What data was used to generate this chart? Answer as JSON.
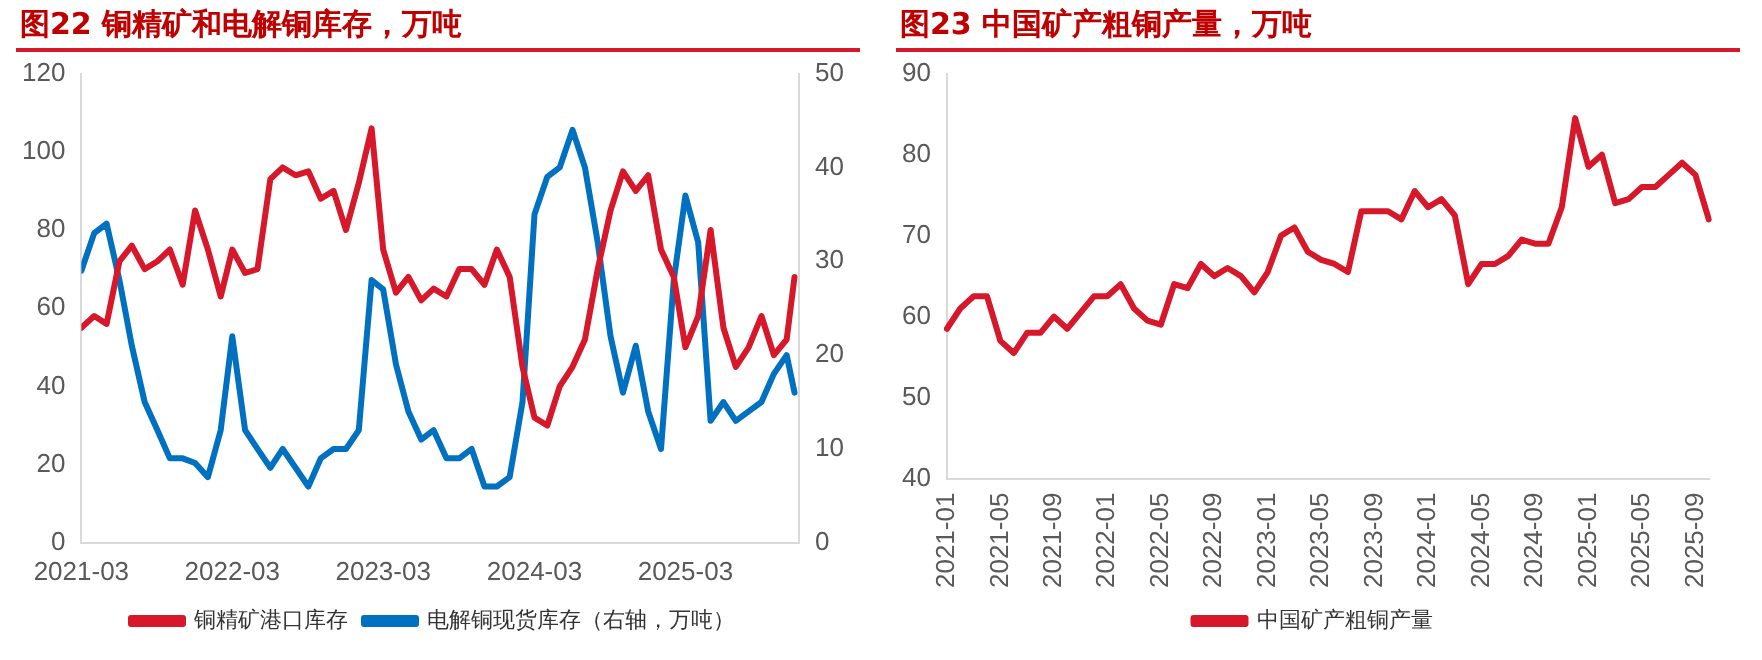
{
  "chart_data": [
    {
      "type": "line",
      "title": "图22  铜精矿和电解铜库存，万吨",
      "x": [
        "2021-03",
        "2021-04",
        "2021-05",
        "2021-06",
        "2021-07",
        "2021-08",
        "2021-09",
        "2021-10",
        "2021-11",
        "2021-12",
        "2022-01",
        "2022-02",
        "2022-03",
        "2022-04",
        "2022-05",
        "2022-06",
        "2022-07",
        "2022-08",
        "2022-09",
        "2022-10",
        "2022-11",
        "2022-12",
        "2023-01",
        "2023-02",
        "2023-03",
        "2023-04",
        "2023-05",
        "2023-06",
        "2023-07",
        "2023-08",
        "2023-09",
        "2023-10",
        "2023-11",
        "2023-12",
        "2024-01",
        "2024-02",
        "2024-03",
        "2024-04",
        "2024-05",
        "2024-06",
        "2024-07",
        "2024-08",
        "2024-09",
        "2024-10",
        "2024-11",
        "2024-12",
        "2025-01",
        "2025-02",
        "2025-03",
        "2025-04",
        "2025-05",
        "2025-06",
        "2025-07",
        "2025-08",
        "2025-09",
        "2025-10",
        "2025-11",
        "2025-11-20"
      ],
      "series": [
        {
          "name": "铜精矿港口库存",
          "color": "#d7182a",
          "values": [
            55,
            58,
            56,
            72,
            76,
            70,
            72,
            75,
            66,
            85,
            75,
            63,
            75,
            69,
            70,
            93,
            96,
            94,
            95,
            88,
            90,
            80,
            92,
            106,
            75,
            64,
            68,
            62,
            65,
            63,
            70,
            70,
            66,
            75,
            68,
            45,
            32,
            30,
            40,
            45,
            52,
            70,
            85,
            95,
            90,
            94,
            75,
            68,
            50,
            58,
            80,
            55,
            45,
            50,
            58,
            48,
            52,
            68
          ]
        },
        {
          "name": "电解铜现货库存（右轴，万吨）",
          "color": "#0070c0",
          "axis": "y2",
          "values": [
            29,
            33,
            34,
            28,
            21,
            15,
            12,
            9,
            9,
            8.5,
            7,
            12,
            22,
            12,
            10,
            8,
            10,
            8,
            6,
            9,
            10,
            10,
            12,
            28,
            27,
            19,
            14,
            11,
            12,
            9,
            9,
            10,
            6,
            6,
            7,
            15,
            35,
            39,
            40,
            44,
            40,
            32,
            22,
            16,
            21,
            14,
            10,
            28,
            37,
            32,
            13,
            15,
            13,
            14,
            15,
            18,
            20,
            16
          ]
        }
      ],
      "xlim": [
        "2021-03",
        "2025-12"
      ],
      "xticks": [
        "2021-03",
        "2022-03",
        "2023-03",
        "2024-03",
        "2025-03"
      ],
      "ylim": [
        0,
        120
      ],
      "yticks": [
        0,
        20,
        40,
        60,
        80,
        100,
        120
      ],
      "y2lim": [
        0,
        50
      ],
      "y2ticks": [
        0,
        10,
        20,
        30,
        40,
        50
      ],
      "grid": false,
      "legend": "bottom",
      "marker": "none",
      "line_style": "solid"
    },
    {
      "type": "line",
      "title": "图23  中国矿产粗铜产量，万吨",
      "categories": [
        "2021-01",
        null,
        null,
        null,
        "2021-05",
        null,
        null,
        null,
        "2021-09",
        null,
        null,
        null,
        "2022-01",
        null,
        null,
        null,
        "2022-05",
        null,
        null,
        null,
        "2022-09",
        null,
        null,
        null,
        "2023-01",
        null,
        null,
        null,
        "2023-05",
        null,
        null,
        null,
        "2023-09",
        null,
        null,
        null,
        "2024-01",
        null,
        null,
        null,
        "2024-05",
        null,
        null,
        null,
        "2024-09",
        null,
        null,
        null,
        "2025-01",
        null,
        null,
        null,
        "2025-05",
        null,
        null,
        null,
        "2025-09",
        null
      ],
      "series": [
        {
          "name": "中国矿产粗铜产量",
          "color": "#d7182a",
          "values": [
            58.5,
            61,
            62.5,
            62.5,
            57,
            55.5,
            58,
            58,
            60,
            58.5,
            60.5,
            62.5,
            62.5,
            64,
            61,
            59.5,
            59,
            64,
            63.5,
            66.5,
            65,
            66,
            65,
            63,
            65.5,
            70,
            71,
            68,
            67,
            66.5,
            65.5,
            73,
            73,
            73,
            72,
            75.5,
            73.5,
            74.5,
            72.5,
            64,
            66.5,
            66.5,
            67.5,
            69.5,
            69,
            69,
            73.5,
            84.5,
            78.5,
            80,
            74,
            74.5,
            76,
            76,
            77.5,
            79,
            77.5,
            72
          ]
        }
      ],
      "ylim": [
        40,
        90
      ],
      "yticks": [
        40,
        50,
        60,
        70,
        80,
        90
      ],
      "grid": false,
      "legend": "bottom",
      "marker": "none",
      "line_style": "solid"
    }
  ]
}
